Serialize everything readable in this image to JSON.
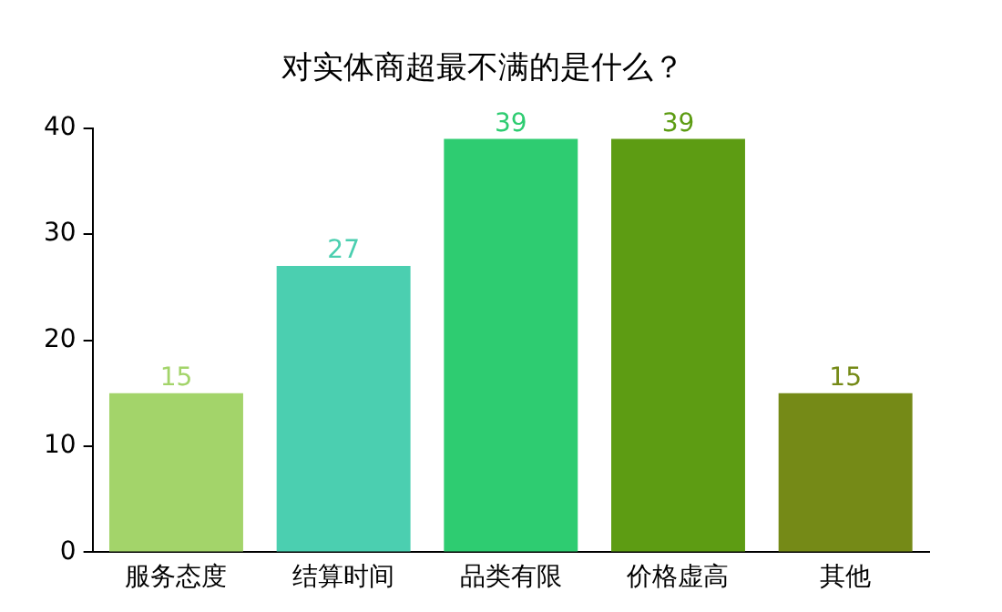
{
  "chart_data": {
    "type": "bar",
    "title": "对实体商超最不满的是什么？",
    "categories": [
      "服务态度",
      "结算时间",
      "品类有限",
      "价格虚高",
      "其他"
    ],
    "values": [
      15,
      27,
      39,
      39,
      15
    ],
    "colors": [
      "#a3d46a",
      "#4bcfb0",
      "#2ecc71",
      "#5d9c13",
      "#758a17"
    ],
    "ylim": [
      0,
      40
    ],
    "yticks": [
      0,
      10,
      20,
      30,
      40
    ],
    "grid": false,
    "legend": false,
    "data_labels": true
  }
}
